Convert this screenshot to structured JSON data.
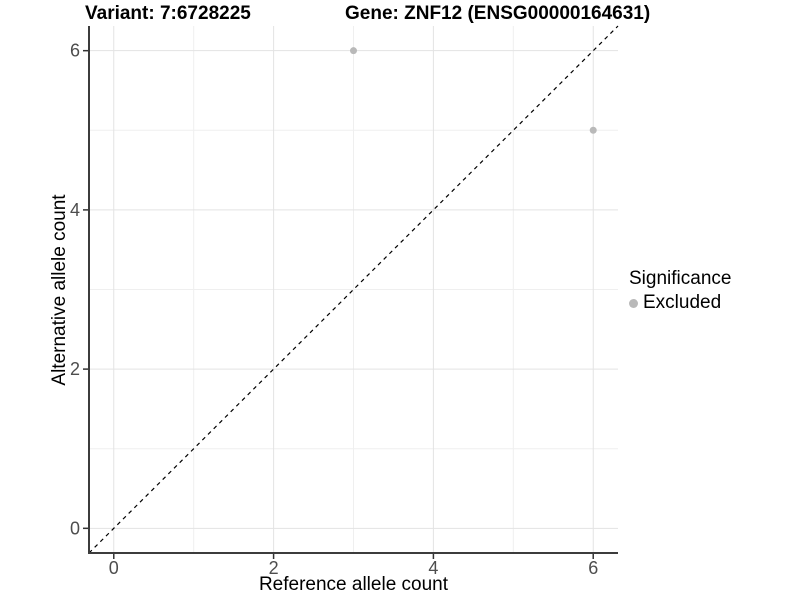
{
  "titles": {
    "variant": "Variant: 7:6728225",
    "gene": "Gene: ZNF12 (ENSG00000164631)"
  },
  "axes": {
    "x": {
      "label": "Reference allele count"
    },
    "y": {
      "label": "Alternative allele count"
    }
  },
  "legend": {
    "title": "Significance",
    "items": [
      {
        "label": "Excluded",
        "color": "#b9b9b9"
      }
    ]
  },
  "colors": {
    "background": "#ffffff",
    "grid_major": "#e3e3e3",
    "grid_minor": "#efefef",
    "axis_line": "#3c3c3c",
    "tick_mark": "#333333",
    "tick_label": "#4d4d4d",
    "identity_line": "#000000",
    "point": "#b9b9b9"
  },
  "chart_data": {
    "type": "scatter",
    "title": "Variant: 7:6728225   Gene: ZNF12 (ENSG00000164631)",
    "xlabel": "Reference allele count",
    "ylabel": "Alternative allele count",
    "xlim": [
      -0.31,
      6.31
    ],
    "ylim": [
      -0.31,
      6.31
    ],
    "x_ticks": [
      0,
      2,
      4,
      6
    ],
    "y_ticks": [
      0,
      2,
      4,
      6
    ],
    "minor_gridlines_x": [
      1,
      3,
      5
    ],
    "minor_gridlines_y": [
      1,
      3,
      5
    ],
    "grid": true,
    "legend_position": "right",
    "series": [
      {
        "name": "Excluded",
        "color": "#b9b9b9",
        "points": [
          {
            "x": 3,
            "y": 6
          },
          {
            "x": 6,
            "y": 5
          }
        ]
      }
    ],
    "reference_line": {
      "type": "identity",
      "slope": 1,
      "intercept": 0,
      "style": "dashed",
      "color": "#000000"
    }
  }
}
